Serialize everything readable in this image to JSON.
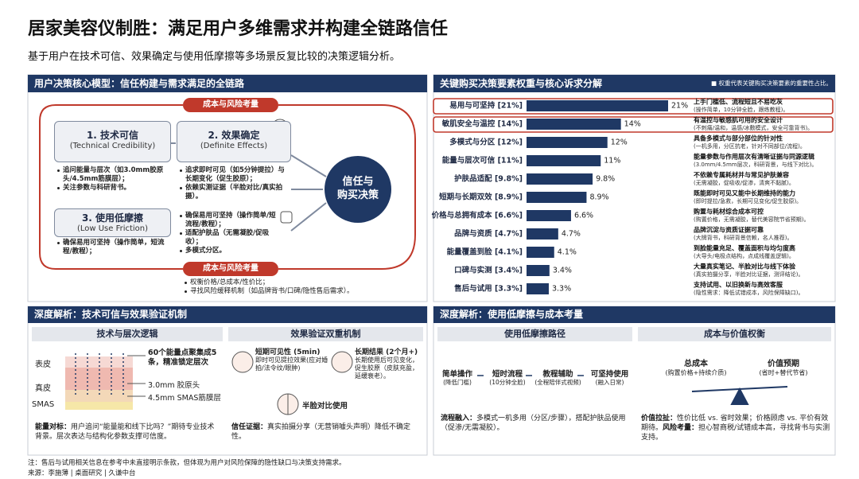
{
  "header": {
    "title": "居家美容仪制胜：满足用户多维需求并构建全链路信任",
    "subtitle": "基于用户在技术可信、效果确定与使用低摩擦等多场景反复比较的决策逻辑分析。"
  },
  "model": {
    "title": "用户决策核心模型：信任构建与需求满足的全链路",
    "top_label": "成本与风险考量",
    "boxes": [
      {
        "title": "1. 技术可信",
        "subtitle": "(Technical Credibility)",
        "bullets": [
          "追问能量与层次（如3.0mm胶原头/4.5mm筋膜层）；",
          "关注参数与科研背书。"
        ]
      },
      {
        "title": "2. 效果确定",
        "subtitle": "(Definite Effects)",
        "bullets": [
          "追求即时可见（如5分钟提拉）与长期变化（促生胶原）；",
          "依赖实测证据（半脸对比/真实拍摄）。"
        ]
      },
      {
        "title": "3. 使用低摩擦",
        "subtitle": "(Low Use Friction)",
        "bullets": [
          "确保易用可坚持（操作简单，短流程/教程）；"
        ]
      }
    ],
    "friction_extra": [
      "确保易用可坚持（操作简单/短流程/教程）；",
      "适配护肤品（无需凝胶/促吸收）；",
      "多模式分区。"
    ],
    "center": [
      "信任与",
      "购买决策"
    ],
    "bottom_label": "成本与风险考量",
    "bottom_bullets": [
      "权衡价格/总成本/性价比；",
      "寻找风险缓释机制（如品牌背书/口碑/隐性售后需求）。"
    ]
  },
  "chart_data": {
    "type": "bar",
    "orientation": "horizontal",
    "title": "关键购买决策要素权重与核心诉求分解",
    "note": "■ 权重代表关键购买决策要素的重要性占比。",
    "categories": [
      "易用与可坚持 [21%]",
      "敏肌安全与温控 [14%]",
      "多模式与分区 [12%]",
      "能量与层次可信 [11%]",
      "护肤品适配 [9.8%]",
      "短期与长期双效 [8.9%]",
      "价格与总拥有成本 [6.6%]",
      "品牌与资质 [4.7%]",
      "能量覆盖到脸 [4.1%]",
      "口碑与实测 [3.4%]",
      "售后与试用 [3.3%]"
    ],
    "values": [
      21,
      14,
      12,
      11,
      9.8,
      8.9,
      6.6,
      4.7,
      4.1,
      3.4,
      3.3
    ],
    "value_labels": [
      "21%",
      "14%",
      "12%",
      "11%",
      "9.8%",
      "8.9%",
      "6.6%",
      "4.7%",
      "4.1%",
      "3.4%",
      "3.3%"
    ],
    "color": "#1f3864",
    "annotations": [
      {
        "head": "上手门槛低、流程短且不易吃灰",
        "detail": "(操作简单，10分钟全脸，跟练教程)。"
      },
      {
        "head": "有温控与敏感肌可用的安全设计",
        "detail": "(不刺痛/温和，温感/冰敷模式，安全可靠背书)。"
      },
      {
        "head": "具备多模式与部分部位的针对性",
        "detail": "(一机多用，分区抗老，针对不同部位/流程)。"
      },
      {
        "head": "能量参数与作用层次有清晰证据与同源逻辑",
        "detail": "(3.0mm/4.5mm层次，科研背景，与线下对比)。"
      },
      {
        "head": "不依赖专属耗材并与常见护肤兼容",
        "detail": "(无需凝胶，促吸收/促渗，清爽不黏腻)。"
      },
      {
        "head": "既能即时可见又能中长期维持的能力",
        "detail": "(即时提拉/急救，长期可见变化/促生胶原)。"
      },
      {
        "head": "购置与耗材综合成本可控",
        "detail": "(购置价格，无需凝胶，替代美容院节省预期)。"
      },
      {
        "head": "品牌沉淀与资质证据可靠",
        "detail": "(大牌背书，科研背景信赖，名人推荐)。"
      },
      {
        "head": "到脸能量充足、覆盖面积与均匀度高",
        "detail": "(大导头/电极点结构，点成线覆盖逻辑)。"
      },
      {
        "head": "大量真实笔记、半脸对比与线下体验",
        "detail": "(真实拍摄分享，半脸对比证据，测评结论)。"
      },
      {
        "head": "支持试用、以旧换新与高效客服",
        "detail": "(隐性需求：降低试错成本，风险保障缺口)。"
      }
    ]
  },
  "deep1": {
    "title": "深度解析：技术可信与效果验证机制",
    "tech": {
      "title": "技术与层次逻辑",
      "layers": [
        "表皮",
        "真皮",
        "SMAS"
      ],
      "callouts": [
        "60个能量点聚集成5条，精准锁定层次",
        "3.0mm 胶原头",
        "4.5mm SMAS筋膜层"
      ],
      "label": "能量对标：",
      "text": "用户追问“能量能和线下比吗？”期待专业技术背景。层次表达与结构化参数支撑可信度。"
    },
    "effect": {
      "title": "效果验证双重机制",
      "short_head": "短期可见性 (5min)",
      "short_detail": "即时可见提拉效果(应对婚拍/法令纹/眼肿)",
      "long_head": "长期结果 (2个月+)",
      "long_detail": "长期使用后可见变化，促生胶原（皮肤充盈，延缓衰老）。",
      "half": "半脸对比使用",
      "label": "信任证据：",
      "text": "真实拍摄分享（无营销噱头声明）降低不确定性。"
    }
  },
  "deep2": {
    "title": "深度解析：使用低摩擦与成本考量",
    "friction": {
      "title": "使用低摩擦路径",
      "steps": [
        {
          "head": "简单操作",
          "sub": "(降低门槛)"
        },
        {
          "head": "短时流程",
          "sub": "(10分钟全脸)"
        },
        {
          "head": "教程辅助",
          "sub": "(全程陪伴式视频)"
        },
        {
          "head": "可坚持使用",
          "sub": "(融入日常)"
        }
      ],
      "label": "流程融入：",
      "text": "多模式一机多用（分区/步骤），搭配护肤品使用（促渗/无需凝胶）。"
    },
    "cost": {
      "title": "成本与价值权衡",
      "left_head": "总成本",
      "left_sub": "(购置价格+持续介质)",
      "right_head": "价值预期",
      "right_sub": "(省时+替代节省)",
      "label1": "价值拉扯：",
      "text1": "性价比低 vs. 省时效果；价格顾虑 vs. 平价有效期待。",
      "label2": "风险考量：",
      "text2": "担心智商税/试错成本高，寻找背书与实测支持。"
    }
  },
  "footer": {
    "note": "注：售后与试用相关信息在参考中未直接明示条款，但体现为用户对风险保障的隐性缺口与决策支持需求。",
    "source": "来源：李施薄 | 桌面研究 | 久谦中台"
  }
}
